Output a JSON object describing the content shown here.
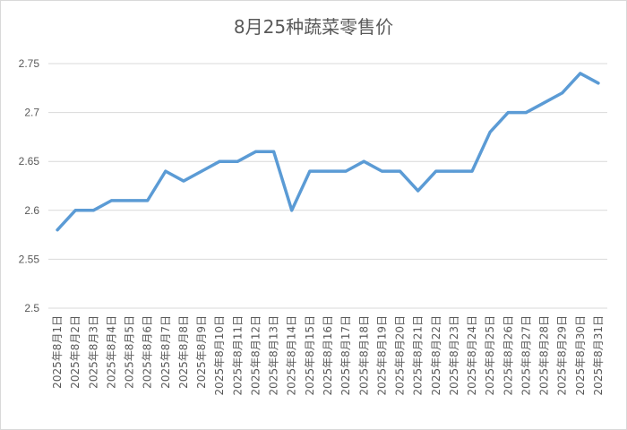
{
  "chart_data": {
    "type": "line",
    "title": "8月25种蔬菜零售价",
    "xlabel": "",
    "ylabel": "",
    "ylim": [
      2.5,
      2.75
    ],
    "yticks": [
      "2.5",
      "2.55",
      "2.6",
      "2.65",
      "2.7",
      "2.75"
    ],
    "grid": true,
    "legend": "none",
    "color": "#5b9bd5",
    "categories": [
      "2025年8月1日",
      "2025年8月2日",
      "2025年8月3日",
      "2025年8月4日",
      "2025年8月5日",
      "2025年8月6日",
      "2025年8月7日",
      "2025年8月8日",
      "2025年8月9日",
      "2025年8月10日",
      "2025年8月11日",
      "2025年8月12日",
      "2025年8月13日",
      "2025年8月14日",
      "2025年8月15日",
      "2025年8月16日",
      "2025年8月17日",
      "2025年8月18日",
      "2025年8月19日",
      "2025年8月20日",
      "2025年8月21日",
      "2025年8月22日",
      "2025年8月23日",
      "2025年8月24日",
      "2025年8月25日",
      "2025年8月26日",
      "2025年8月27日",
      "2025年8月28日",
      "2025年8月29日",
      "2025年8月30日",
      "2025年8月31日"
    ],
    "values": [
      2.58,
      2.6,
      2.6,
      2.61,
      2.61,
      2.61,
      2.64,
      2.63,
      2.64,
      2.65,
      2.65,
      2.66,
      2.66,
      2.6,
      2.64,
      2.64,
      2.64,
      2.65,
      2.64,
      2.64,
      2.62,
      2.64,
      2.64,
      2.64,
      2.68,
      2.7,
      2.7,
      2.71,
      2.72,
      2.74,
      2.73
    ]
  }
}
